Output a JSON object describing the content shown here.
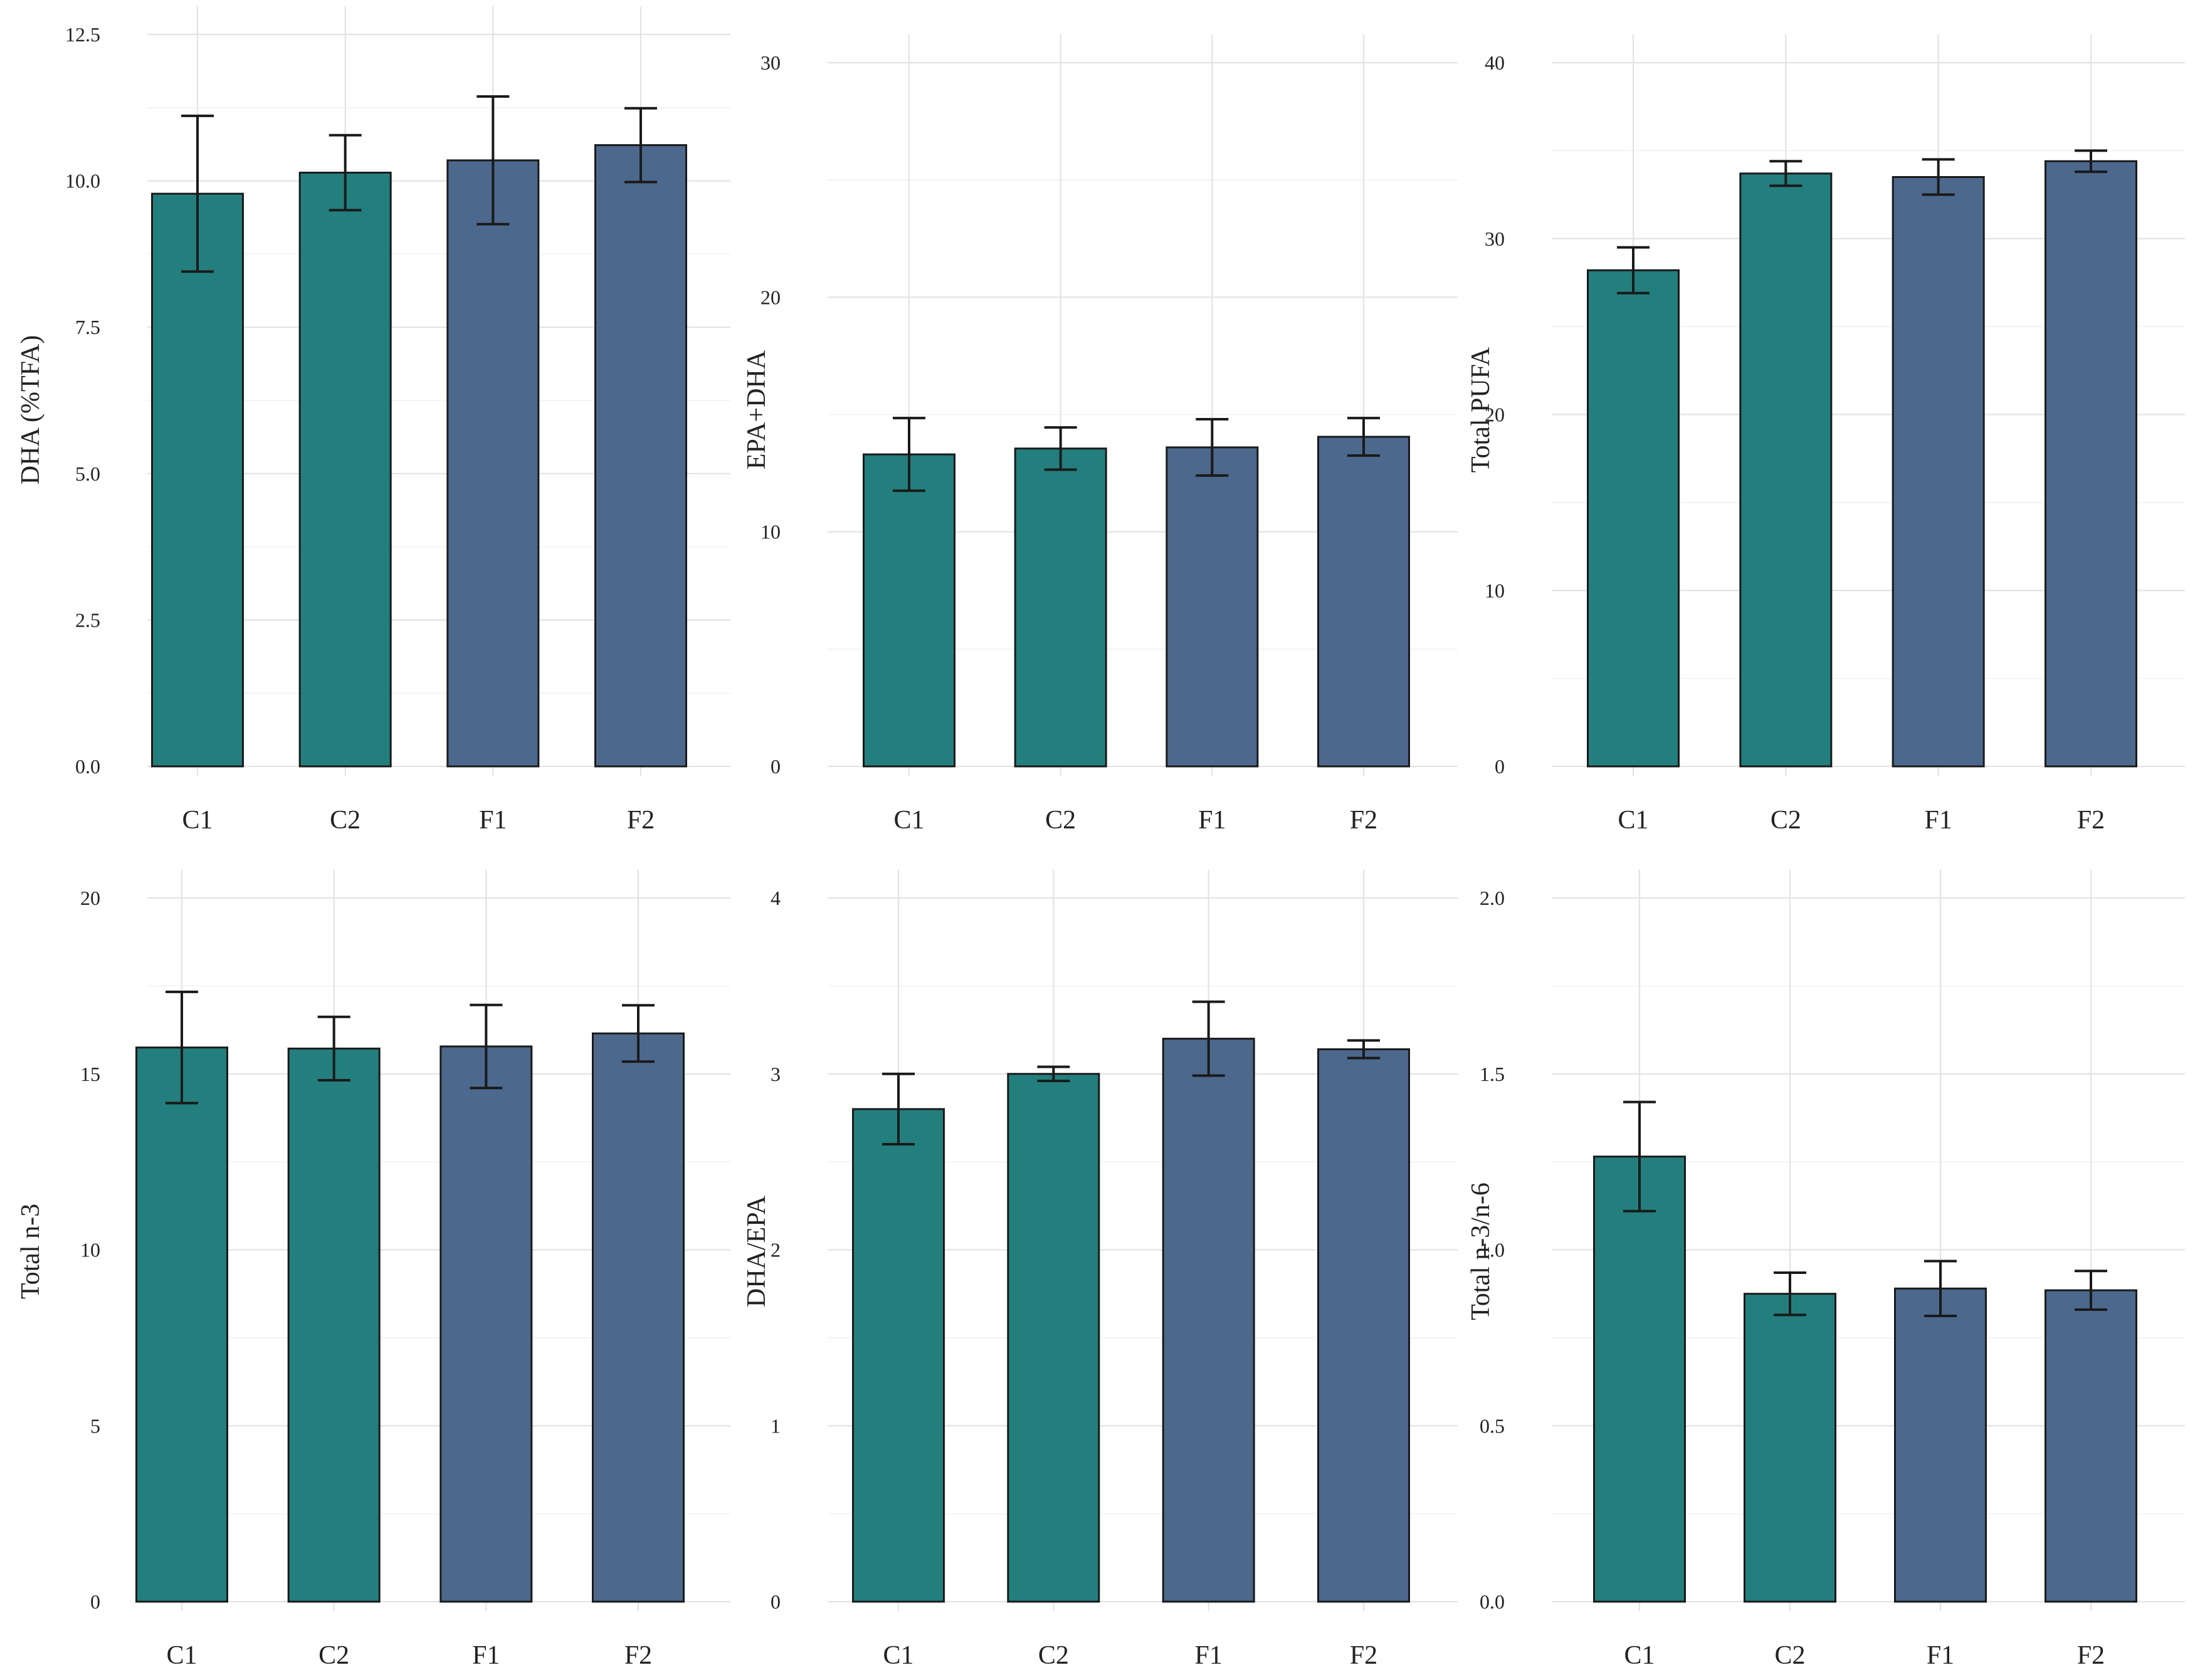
{
  "colors": {
    "control": "#237f7d",
    "fish": "#4c688c",
    "grid": "#e3e3e3",
    "error_bar": "#1a1a1a"
  },
  "chart_data": [
    {
      "type": "bar",
      "ylabel": "DHA (%TFA)",
      "categories": [
        "C1",
        "C2",
        "F1",
        "F2"
      ],
      "values": [
        9.78,
        10.14,
        10.35,
        10.61
      ],
      "errors": [
        1.33,
        0.64,
        1.09,
        0.63
      ],
      "ylim": [
        0,
        12.5
      ],
      "ticks": [
        0,
        2.5,
        5,
        7.5,
        10,
        12.5
      ],
      "tick_labels": [
        "0.0",
        "2.5",
        "5.0",
        "7.5",
        "10.0",
        "12.5"
      ]
    },
    {
      "type": "bar",
      "ylabel": "EPA+DHA",
      "categories": [
        "C1",
        "C2",
        "F1",
        "F2"
      ],
      "values": [
        13.3,
        13.55,
        13.6,
        14.05
      ],
      "errors": [
        1.55,
        0.9,
        1.2,
        0.8
      ],
      "ylim": [
        0,
        30
      ],
      "ticks": [
        0,
        10,
        20,
        30
      ],
      "tick_labels": [
        "0",
        "10",
        "20",
        "30"
      ]
    },
    {
      "type": "bar",
      "ylabel": "Total PUFA",
      "categories": [
        "C1",
        "C2",
        "F1",
        "F2"
      ],
      "values": [
        28.2,
        33.7,
        33.5,
        34.4
      ],
      "errors": [
        1.3,
        0.7,
        1.0,
        0.6
      ],
      "ylim": [
        0,
        40
      ],
      "ticks": [
        0,
        10,
        20,
        30,
        40
      ],
      "tick_labels": [
        "0",
        "10",
        "20",
        "30",
        "40"
      ]
    },
    {
      "type": "bar",
      "ylabel": "Total n-3",
      "categories": [
        "C1",
        "C2",
        "F1",
        "F2"
      ],
      "values": [
        15.75,
        15.72,
        15.78,
        16.15
      ],
      "errors": [
        1.58,
        0.9,
        1.18,
        0.8
      ],
      "ylim": [
        0,
        20
      ],
      "ticks": [
        0,
        5,
        10,
        15,
        20
      ],
      "tick_labels": [
        "0",
        "5",
        "10",
        "15",
        "20"
      ]
    },
    {
      "type": "bar",
      "ylabel": "DHA/EPA",
      "categories": [
        "C1",
        "C2",
        "F1",
        "F2"
      ],
      "values": [
        2.8,
        3.0,
        3.2,
        3.14
      ],
      "errors": [
        0.2,
        0.04,
        0.21,
        0.05
      ],
      "ylim": [
        0,
        4
      ],
      "ticks": [
        0,
        1,
        2,
        3,
        4
      ],
      "tick_labels": [
        "0",
        "1",
        "2",
        "3",
        "4"
      ]
    },
    {
      "type": "bar",
      "ylabel": "Total n-3/n-6",
      "categories": [
        "C1",
        "C2",
        "F1",
        "F2"
      ],
      "values": [
        1.265,
        0.875,
        0.89,
        0.885
      ],
      "errors": [
        0.155,
        0.06,
        0.078,
        0.055
      ],
      "ylim": [
        0,
        2
      ],
      "ticks": [
        0,
        0.5,
        1,
        1.5,
        2
      ],
      "tick_labels": [
        "0.0",
        "0.5",
        "1.0",
        "1.5",
        "2.0"
      ]
    }
  ]
}
